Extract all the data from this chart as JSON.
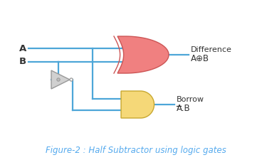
{
  "background_color": "#ffffff",
  "line_color": "#4da6d8",
  "line_width": 1.6,
  "label_A": "A",
  "label_B": "B",
  "label_diff_1": "Difference",
  "label_diff_2": "A⊕B",
  "label_borrow_1": "Borrow",
  "label_borrow_2": "A.B",
  "caption": "Figure-2 : Half Subtractor using logic gates",
  "caption_color": "#55aaee",
  "caption_fontsize": 8.5,
  "xor_face": "#f08080",
  "xor_edge": "#cc5555",
  "and_face": "#f5d878",
  "and_edge": "#c8a830",
  "not_face": "#d0d0d0",
  "not_edge": "#999999",
  "bubble_fill": "#bbbbbb",
  "bubble_edge": "#999999",
  "text_color": "#333333",
  "font_size_AB": 9.5,
  "font_size_label": 8.0
}
